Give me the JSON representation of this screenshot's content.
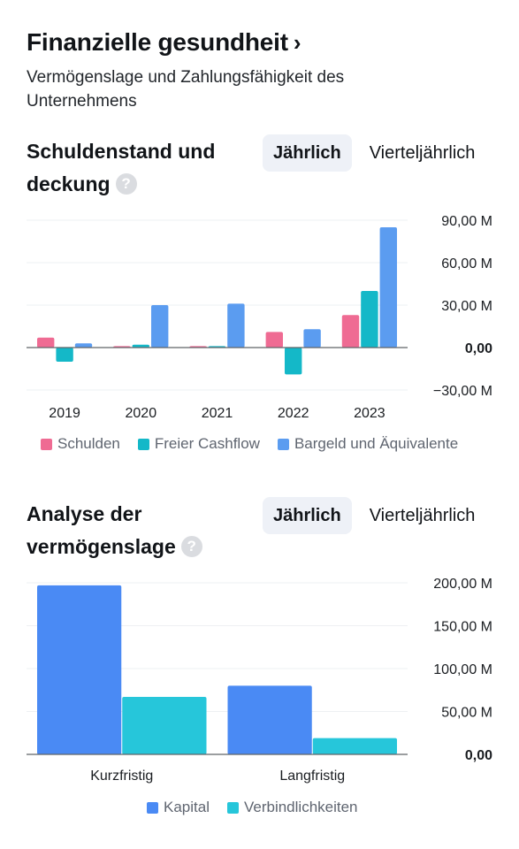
{
  "header": {
    "title": "Finanzielle gesundheit",
    "chevron": "›",
    "subtitle": "Vermögenslage und Zahlungsfähigkeit des Unternehmens"
  },
  "debt_section": {
    "title": "Schuldenstand und deckung",
    "help": "?",
    "toggle": {
      "active": "Jährlich",
      "inactive": "Vierteljährlich"
    }
  },
  "assets_section": {
    "title": "Analyse der vermögenslage",
    "help": "?",
    "toggle": {
      "active": "Jährlich",
      "inactive": "Vierteljährlich"
    }
  },
  "chart_data": [
    {
      "type": "bar",
      "categories": [
        "2019",
        "2020",
        "2021",
        "2022",
        "2023"
      ],
      "series": [
        {
          "name": "Schulden",
          "color": "#ef6b93",
          "values": [
            7,
            1,
            1,
            11,
            23
          ]
        },
        {
          "name": "Freier Cashflow",
          "color": "#14b8c8",
          "values": [
            -10,
            2,
            1,
            -19,
            40
          ]
        },
        {
          "name": "Bargeld und Äquivalente",
          "color": "#5b9cf0",
          "values": [
            3,
            30,
            31,
            13,
            85
          ]
        }
      ],
      "yticks": [
        90,
        60,
        30,
        0,
        -30
      ],
      "ytick_labels": [
        "90,00 M",
        "60,00 M",
        "30,00 M",
        "0,00",
        "−30,00 M"
      ],
      "ylim": [
        -30,
        90
      ],
      "grid": true,
      "legend": "bottom"
    },
    {
      "type": "bar",
      "categories": [
        "Kurzfristig",
        "Langfristig"
      ],
      "series": [
        {
          "name": "Kapital",
          "color": "#4a8af4",
          "values": [
            197,
            80
          ]
        },
        {
          "name": "Verbindlichkeiten",
          "color": "#26c6da",
          "values": [
            67,
            19
          ]
        }
      ],
      "yticks": [
        200,
        150,
        100,
        50,
        0
      ],
      "ytick_labels": [
        "200,00 M",
        "150,00 M",
        "100,00 M",
        "50,00 M",
        "0,00"
      ],
      "ylim": [
        0,
        200
      ],
      "grid": true,
      "legend": "bottom"
    }
  ]
}
